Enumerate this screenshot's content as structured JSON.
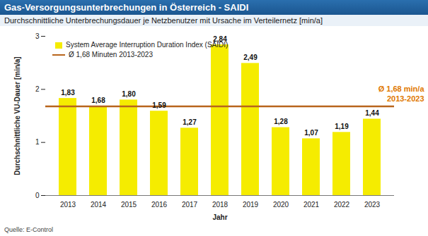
{
  "chart_data": {
    "type": "bar",
    "title": "Gas-Versorgungsunterbrechungen in Österreich  - SAIDI",
    "subtitle": "Durchschnittliche  Unterbrechungsdauer je Netzbenutzer mit Ursache im Verteilernetz [min/a]",
    "categories": [
      "2013",
      "2014",
      "2015",
      "2016",
      "2017",
      "2018",
      "2019",
      "2020",
      "2021",
      "2022",
      "2023"
    ],
    "series": [
      {
        "name": "System Average Interruption Duration Index (SAIDI)",
        "color": "#f5ec00",
        "values": [
          1.83,
          1.68,
          1.8,
          1.59,
          1.27,
          2.84,
          2.49,
          1.28,
          1.07,
          1.19,
          1.44
        ],
        "value_labels": [
          "1,83",
          "1,68",
          "1,80",
          "1,59",
          "1,27",
          "2,84",
          "2,49",
          "1,28",
          "1,07",
          "1,19",
          "1,44"
        ]
      }
    ],
    "reference_line": {
      "name": "Ø 1,68 Minuten 2013-2023",
      "value": 1.68,
      "color": "#b8651c",
      "annotation": [
        "Ø 1,68 min/a",
        "2013-2023"
      ],
      "annotation_color": "#e07800"
    },
    "data_labels": true,
    "ylim": [
      0,
      3
    ],
    "yticks": [
      0,
      1,
      2,
      3
    ],
    "ylabel": "Durchschnittliche VU-Dauer [min/a]",
    "xlabel": "Jahr",
    "grid": false,
    "legend": "top-left",
    "source": "Quelle: E-Control"
  }
}
